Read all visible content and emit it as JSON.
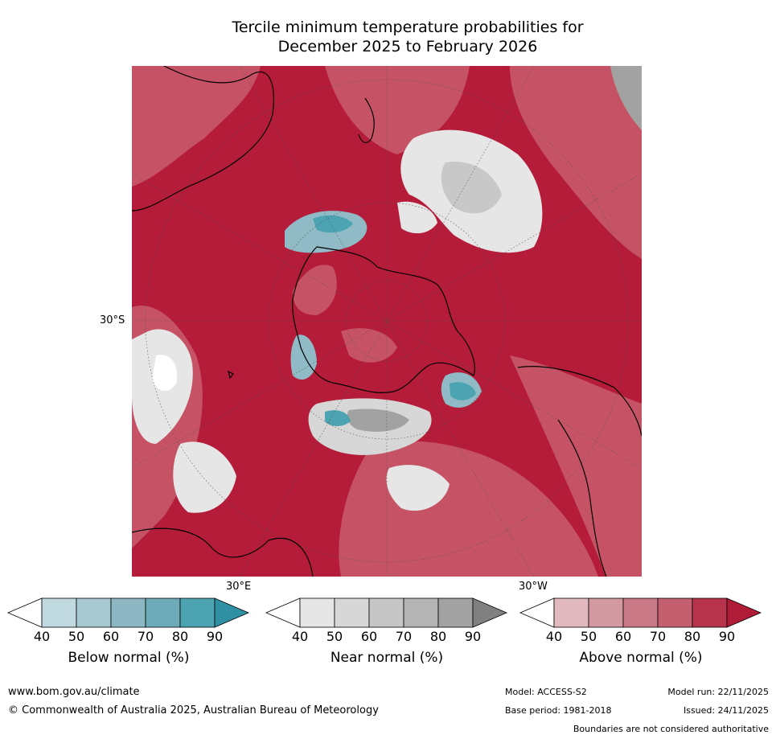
{
  "title": {
    "line1": "Tercile minimum temperature probabilities for",
    "line2": "December 2025 to February 2026"
  },
  "map": {
    "projection": "south-polar-stereographic",
    "lat_label": "30°S",
    "lon_label_east": "30°E",
    "lon_label_west": "30°W",
    "dominant_category": "Above normal",
    "colors": {
      "above_70_80": "#c65365",
      "above_80_90": "#b8324a",
      "above_90": "#b41c3a",
      "near_40": "#e6e6e6",
      "near_60": "#c8c8c8",
      "below_60": "#8fbac6",
      "below_80": "#4ca4b2",
      "coast": "#000000"
    }
  },
  "legends": [
    {
      "id": "below",
      "caption": "Below normal (%)",
      "ticks": [
        "40",
        "50",
        "60",
        "70",
        "80",
        "90"
      ],
      "colors": [
        "#c0d9df",
        "#a6c8d0",
        "#8db7c3",
        "#6dabb8",
        "#4ca4b2",
        "#2f8fa3"
      ]
    },
    {
      "id": "near",
      "caption": "Near normal (%)",
      "ticks": [
        "40",
        "50",
        "60",
        "70",
        "80",
        "90"
      ],
      "colors": [
        "#e6e6e6",
        "#d7d7d7",
        "#c6c6c6",
        "#b4b4b4",
        "#a2a2a2",
        "#808080"
      ]
    },
    {
      "id": "above",
      "caption": "Above normal (%)",
      "ticks": [
        "40",
        "50",
        "60",
        "70",
        "80",
        "90"
      ],
      "colors": [
        "#e2b9be",
        "#d49aa2",
        "#c97a86",
        "#c35f6f",
        "#b8344c",
        "#b01c38"
      ]
    }
  ],
  "footer": {
    "website": "www.bom.gov.au/climate",
    "copyright": "© Commonwealth of Australia 2025, Australian Bureau of Meteorology",
    "model": "Model: ACCESS-S2",
    "base_period": "Base period: 1981-2018",
    "model_run": "Model run: 22/11/2025",
    "issued": "Issued: 24/11/2025",
    "disclaimer": "Boundaries are not considered authoritative"
  }
}
